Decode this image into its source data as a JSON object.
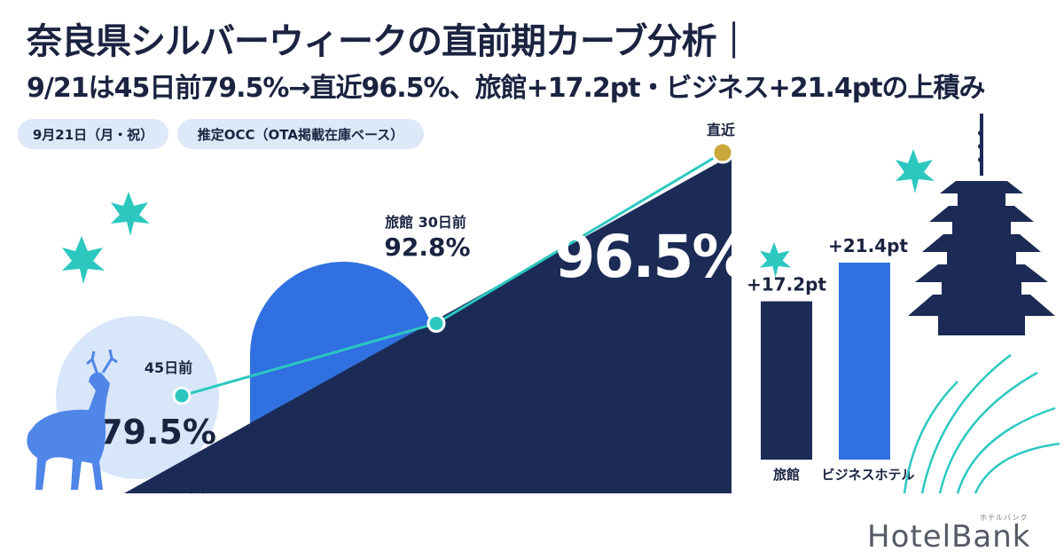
{
  "header": {
    "title": "奈良県シルバーウィークの直前期カーブ分析｜",
    "subtitle": "9/21は45日前79.5%→直近96.5%、旅館+17.2pt・ビジネス+21.4ptの上積み"
  },
  "tags": {
    "date": "9月21日（月・祝）",
    "metric": "推定OCC（OTA掲載在庫ベース）"
  },
  "colors": {
    "navy": "#1b2b55",
    "blue": "#3070e0",
    "teal": "#2cc8c0",
    "gold": "#c8a83a",
    "light_circle": "#d8e6fa"
  },
  "chart_data": [
    {
      "type": "line",
      "categories": [
        "45日前",
        "30日前",
        "直近"
      ],
      "values": [
        79.5,
        92.8,
        96.5
      ],
      "value_labels": [
        "79.5%",
        "92.8%",
        "96.5%"
      ],
      "point_labels": [
        "45日前",
        "旅館 30日前",
        "直近"
      ]
    },
    {
      "type": "bar",
      "categories": [
        "旅館",
        "ビジネスホテル"
      ],
      "values": [
        17.2,
        21.4
      ],
      "value_labels": [
        "+17.2pt",
        "+21.4pt"
      ]
    }
  ],
  "logo": {
    "text": "HotelBank",
    "kana": "ホテルバンク"
  },
  "icons": [
    "deer-icon",
    "maple-leaf-icon",
    "pagoda-icon",
    "grass-icon"
  ]
}
